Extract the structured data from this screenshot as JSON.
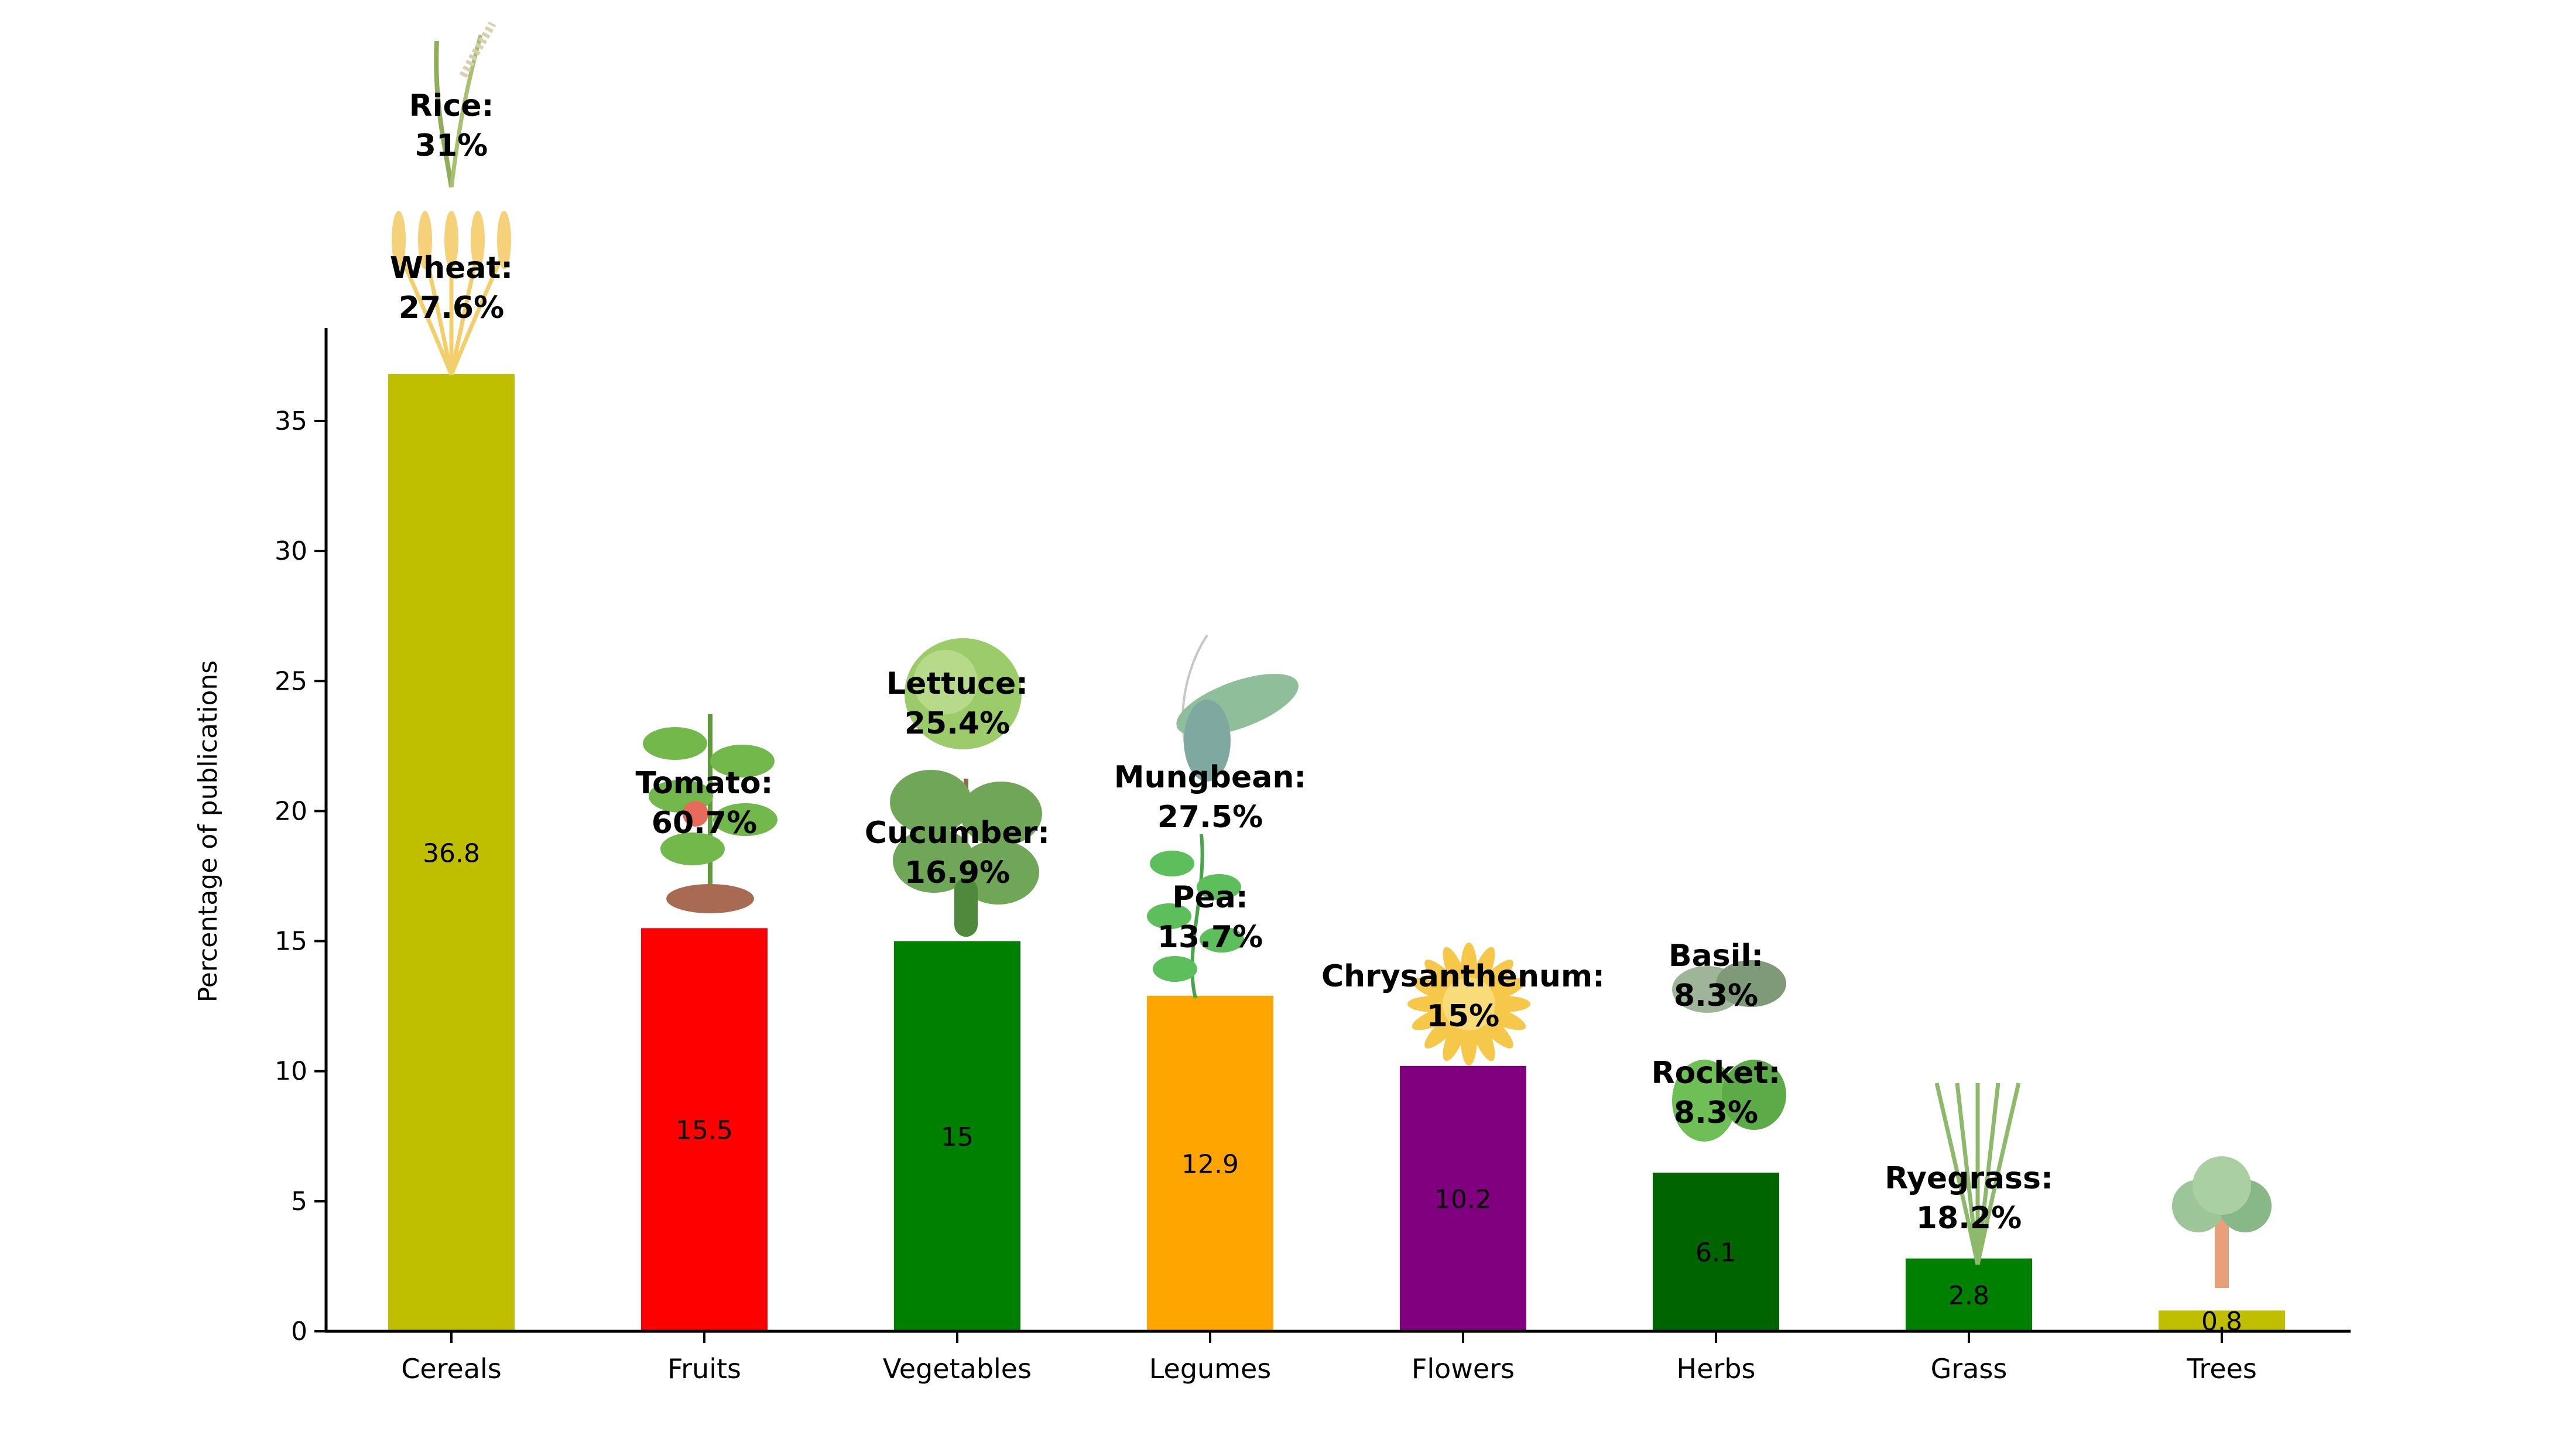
{
  "chart_data": {
    "type": "bar",
    "title": "",
    "xlabel": "",
    "ylabel": "Percentage of publications",
    "ylim": [
      0,
      38
    ],
    "yticks": [
      0,
      5,
      10,
      15,
      20,
      25,
      30,
      35
    ],
    "grid": false,
    "legend": "none",
    "categories": [
      "Cereals",
      "Fruits",
      "Vegetables",
      "Legumes",
      "Flowers",
      "Herbs",
      "Grass",
      "Trees"
    ],
    "values": [
      36.8,
      15.5,
      15,
      12.9,
      10.2,
      6.1,
      2.8,
      0.8
    ],
    "value_labels": [
      "36.8",
      "15.5",
      "15",
      "12.9",
      "10.2",
      "6.1",
      "2.8",
      "0.8"
    ],
    "colors": [
      "#bfbf00",
      "#ff0000",
      "#008000",
      "#ffa500",
      "#800080",
      "#006400",
      "#008000",
      "#bfbf00"
    ],
    "annotations": [
      {
        "category": "Cereals",
        "name": "Rice:",
        "pct": "31%",
        "icon": "rice-plant-icon"
      },
      {
        "category": "Cereals",
        "name": "Wheat:",
        "pct": "27.6%",
        "icon": "wheat-plant-icon"
      },
      {
        "category": "Fruits",
        "name": "Tomato:",
        "pct": "60.7%",
        "icon": "tomato-plant-icon"
      },
      {
        "category": "Vegetables",
        "name": "Lettuce:",
        "pct": "25.4%",
        "icon": "lettuce-icon"
      },
      {
        "category": "Vegetables",
        "name": "Cucumber:",
        "pct": "16.9%",
        "icon": "cucumber-plant-icon"
      },
      {
        "category": "Legumes",
        "name": "Mungbean:",
        "pct": "27.5%",
        "icon": "mungbean-pod-icon"
      },
      {
        "category": "Legumes",
        "name": "Pea:",
        "pct": "13.7%",
        "icon": "pea-plant-icon"
      },
      {
        "category": "Flowers",
        "name": "Chrysanthenum:",
        "pct": "15%",
        "icon": "chrysanthemum-flower-icon"
      },
      {
        "category": "Herbs",
        "name": "Basil:",
        "pct": "8.3%",
        "icon": "basil-leaf-icon"
      },
      {
        "category": "Herbs",
        "name": "Rocket:",
        "pct": "8.3%",
        "icon": "rocket-leaf-icon"
      },
      {
        "category": "Grass",
        "name": "Ryegrass:",
        "pct": "18.2%",
        "icon": "ryegrass-icon"
      },
      {
        "category": "Trees",
        "name": "",
        "pct": "",
        "icon": "tree-icon"
      }
    ]
  }
}
